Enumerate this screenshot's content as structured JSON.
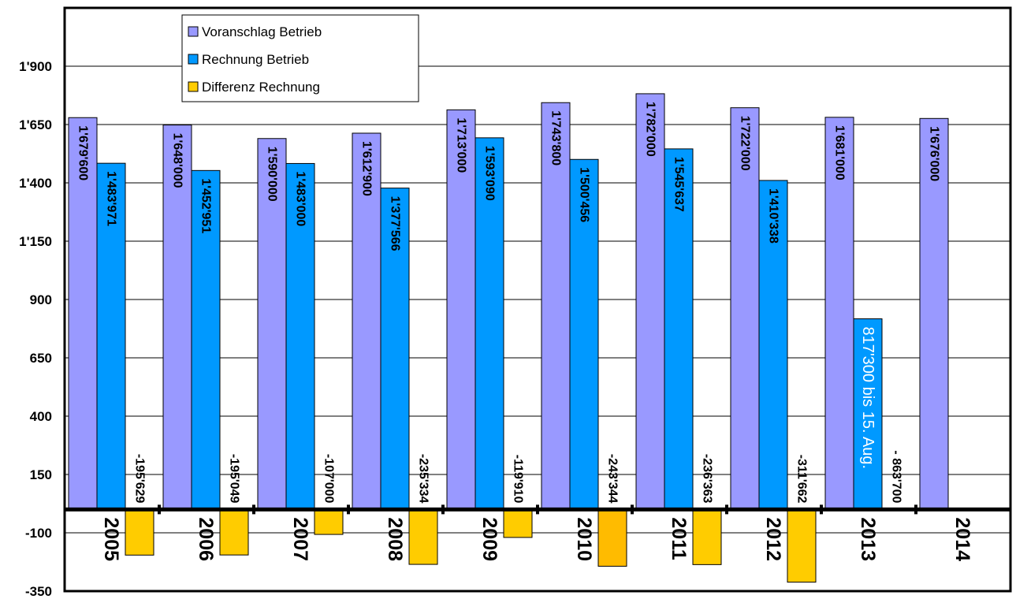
{
  "chart_data": {
    "type": "bar",
    "title": "",
    "xlabel": "",
    "ylabel": "",
    "ylim": [
      -350,
      2150
    ],
    "yticks": [
      -350,
      -100,
      150,
      400,
      650,
      900,
      1150,
      1400,
      1650,
      1900
    ],
    "ytick_labels": [
      "-350",
      "-100",
      "150",
      "400",
      "650",
      "900",
      "1'150",
      "1'400",
      "1'650",
      "1'900"
    ],
    "grid": true,
    "legend_position": "top-left",
    "categories": [
      "2005",
      "2006",
      "2007",
      "2008",
      "2009",
      "2010",
      "2011",
      "2012",
      "2013",
      "2014"
    ],
    "series": [
      {
        "name": "Voranschlag Betrieb",
        "color": "#9999FF",
        "values": [
          1679.6,
          1648.0,
          1590.0,
          1612.9,
          1713.0,
          1743.8,
          1782.0,
          1722.0,
          1681.0,
          1676.0
        ],
        "labels": [
          "1'679'600",
          "1'648'000",
          "1'590'000",
          "1'612'900",
          "1'713'000",
          "1'743'800",
          "1'782'000",
          "1'722'000",
          "1'681'000",
          "1'676'000"
        ]
      },
      {
        "name": "Rechnung Betrieb",
        "color": "#0099FF",
        "values": [
          1483.971,
          1452.951,
          1483.0,
          1377.566,
          1593.09,
          1500.456,
          1545.637,
          1410.338,
          817.3,
          null
        ],
        "labels": [
          "1'483'971",
          "1'452'951",
          "1'483'000",
          "1'377'566",
          "1'593'090",
          "1'500'456",
          "1'545'637",
          "1'410'338",
          "817'300 bis 15. Aug.",
          ""
        ]
      },
      {
        "name": "Differenz Rechnung",
        "color": "#FFCC00",
        "values": [
          -195.629,
          -195.049,
          -107.0,
          -235.334,
          -119.91,
          -243.344,
          -236.363,
          -311.662,
          null,
          null
        ],
        "labels": [
          "-195'629",
          "-195'049",
          "-107'000",
          "-235'334",
          "-119'910",
          "-243'344",
          "-236'363",
          "-311'662",
          "- 863'700",
          ""
        ]
      }
    ]
  }
}
